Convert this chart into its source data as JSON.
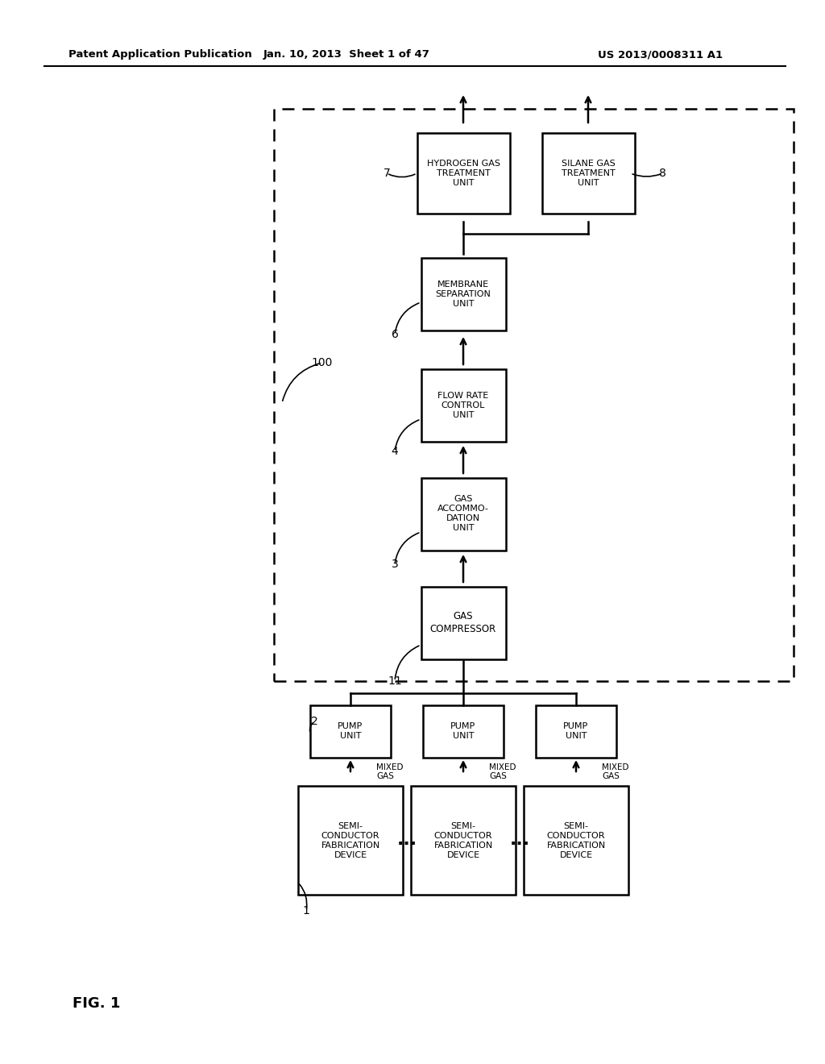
{
  "bg_color": "#ffffff",
  "header_left": "Patent Application Publication",
  "header_mid": "Jan. 10, 2013  Sheet 1 of 47",
  "header_right": "US 2013/0008311 A1",
  "fig_label": "FIG. 1"
}
